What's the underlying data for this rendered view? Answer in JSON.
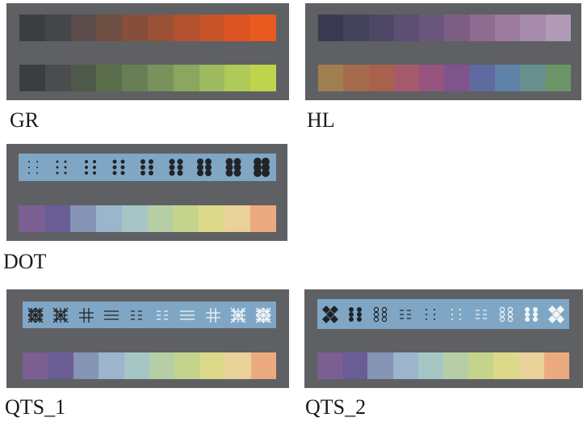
{
  "figures": [
    {
      "id": "gr",
      "label": "GR",
      "top_colors": [
        "#3c3d3f",
        "#45464a",
        "#5c4c4c",
        "#6f4e43",
        "#874f3a",
        "#9a5135",
        "#b2522e",
        "#c75429",
        "#dc5322",
        "#e85a20"
      ],
      "bottom_colors": [
        "#3c3d3f",
        "#4a4c4d",
        "#4f5949",
        "#5b6e4b",
        "#687f55",
        "#78925b",
        "#8ba65f",
        "#9dba5e",
        "#afca56",
        "#bfd44c"
      ]
    },
    {
      "id": "hl",
      "label": "HL",
      "top_colors": [
        "#393a4f",
        "#45425c",
        "#4e4866",
        "#5b4f73",
        "#6a567c",
        "#7d5f86",
        "#8e6b91",
        "#9e7c9e",
        "#a68aaa",
        "#b09ab5"
      ],
      "bottom_colors": [
        "#a07f4e",
        "#a56b4c",
        "#a9604d",
        "#a55a6b",
        "#97547e",
        "#7f548d",
        "#5f6aa0",
        "#5f82a8",
        "#668f8d",
        "#6b9566"
      ]
    },
    {
      "id": "dot",
      "label": "DOT",
      "pattern_dots": [
        1,
        1.5,
        2,
        2.5,
        3,
        3.5,
        4,
        4.5,
        5
      ],
      "bottom_colors": [
        "#7c5f92",
        "#6a5d96",
        "#8593b4",
        "#9ab5cc",
        "#a6c6c6",
        "#b6cea6",
        "#c5d48c",
        "#ddd98a",
        "#ead19a",
        "#ecaa80"
      ]
    },
    {
      "id": "qts1",
      "label": "QTS_1",
      "patterns": [
        "cross-dense-dark",
        "cross-dark",
        "grid-dark",
        "hlines-dark",
        "dashes-dark",
        "dashes-light",
        "hlines-light",
        "grid-light",
        "cross-light",
        "cross-dense-light"
      ],
      "bottom_colors": [
        "#7c5f92",
        "#6a5d96",
        "#8593b4",
        "#9ab5cc",
        "#a6c6c6",
        "#b6cea6",
        "#c5d48c",
        "#ddd98a",
        "#ead19a",
        "#ecaa80"
      ]
    },
    {
      "id": "qts2",
      "label": "QTS_2",
      "patterns": [
        "diamond-dark",
        "dots-big-dark",
        "rings-dark",
        "dash-dark",
        "dots-small-dark",
        "dots-small-light",
        "dash-light",
        "rings-light",
        "dots-big-light",
        "diamond-light"
      ],
      "bottom_colors": [
        "#7c5f92",
        "#6a5d96",
        "#8593b4",
        "#9ab5cc",
        "#a6c6c6",
        "#b6cea6",
        "#c5d48c",
        "#ddd98a",
        "#ead19a",
        "#ecaa80"
      ]
    }
  ]
}
